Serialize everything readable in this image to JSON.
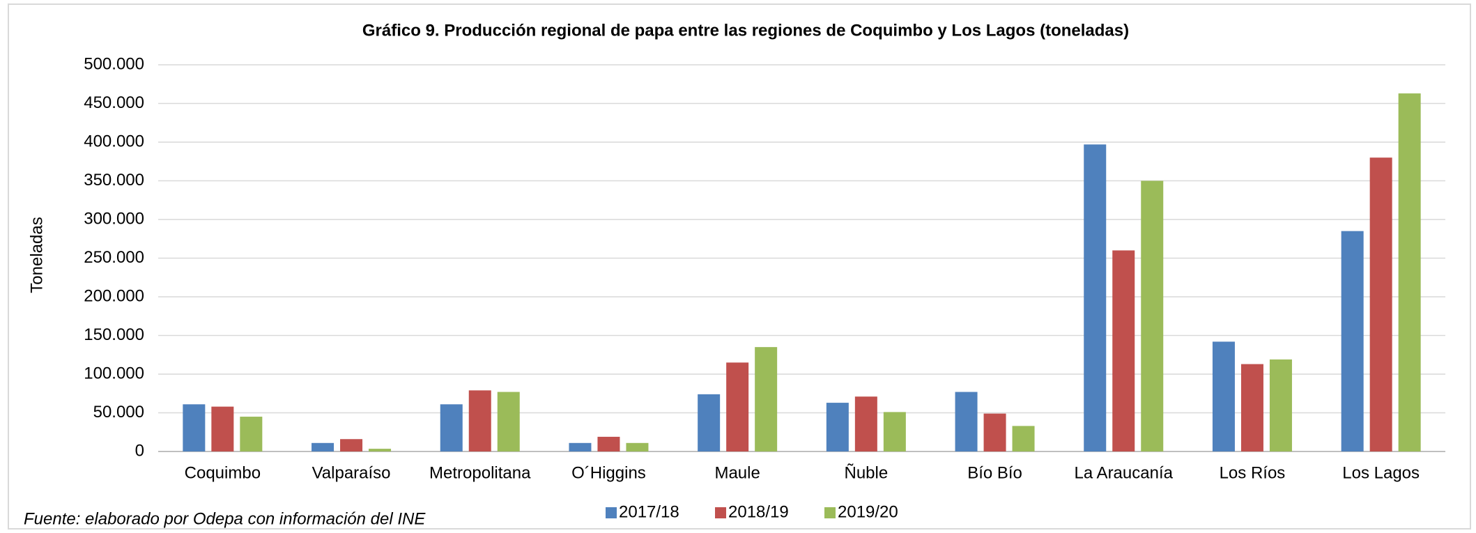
{
  "chart_data": {
    "type": "bar",
    "title": "Gráfico 9. Producción regional de papa entre las regiones de Coquimbo y Los Lagos (toneladas)",
    "y_label": "Toneladas",
    "source": "Fuente: elaborado por Odepa con información del INE",
    "categories": [
      "Coquimbo",
      "Valparaíso",
      "Metropolitana",
      "O´Higgins",
      "Maule",
      "Ñuble",
      "Bío Bío",
      "La Araucanía",
      "Los Ríos",
      "Los Lagos"
    ],
    "series": [
      {
        "name": "2017/18",
        "color": "#4f81bd",
        "values": [
          61000,
          11000,
          61000,
          11000,
          74000,
          63000,
          77000,
          397000,
          142000,
          285000
        ]
      },
      {
        "name": "2018/19",
        "color": "#c0504d",
        "values": [
          58000,
          16000,
          79000,
          19000,
          115000,
          71000,
          49000,
          260000,
          113000,
          380000
        ]
      },
      {
        "name": "2019/20",
        "color": "#9bbb59",
        "values": [
          45000,
          3500,
          77000,
          11000,
          135000,
          51000,
          33000,
          350000,
          119000,
          463000
        ]
      }
    ],
    "ylim": [
      0,
      500000
    ],
    "yticks": [
      0,
      {
        "value": 50000,
        "label": "50.000"
      },
      {
        "value": 100000,
        "label": "100.000"
      },
      {
        "value": 150000,
        "label": "150.000"
      },
      {
        "value": 200000,
        "label": "200.000"
      },
      {
        "value": 250000,
        "label": "250.000"
      },
      {
        "value": 300000,
        "label": "300.000"
      },
      {
        "value": 350000,
        "label": "350.000"
      },
      {
        "value": 400000,
        "label": "400.000"
      },
      {
        "value": 450000,
        "label": "450.000"
      },
      {
        "value": 500000,
        "label": "500.000"
      }
    ],
    "grid": true,
    "legend_position": "bottom"
  }
}
